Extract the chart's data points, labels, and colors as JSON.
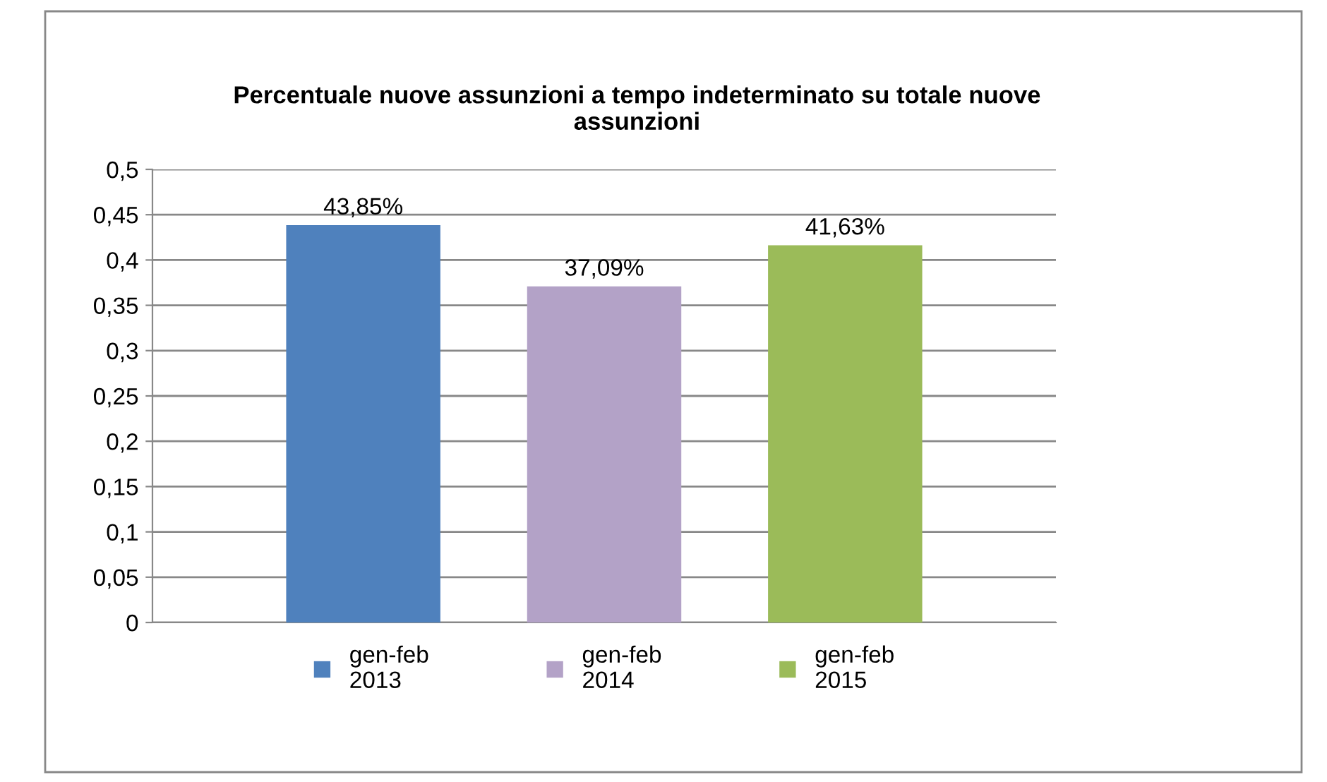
{
  "chart_data": {
    "type": "bar",
    "title": "Percentuale nuove assunzioni a tempo indeterminato su totale nuove\nassunzioni",
    "categories": [
      null
    ],
    "series": [
      {
        "name": "gen-feb\n2013",
        "color": "#4f81bd",
        "values": [
          0.4385
        ],
        "value_labels": [
          "43,85%"
        ]
      },
      {
        "name": "gen-feb\n2014",
        "color": "#b3a2c7",
        "values": [
          0.3709
        ],
        "value_labels": [
          "37,09%"
        ]
      },
      {
        "name": "gen-feb\n2015",
        "color": "#9bbb59",
        "values": [
          0.4163
        ],
        "value_labels": [
          "41,63%"
        ]
      }
    ],
    "ylim": [
      0,
      0.5
    ],
    "yticks": [
      0,
      {
        "value": 0.05,
        "label": "0,05"
      },
      {
        "value": 0.1,
        "label": "0,1"
      },
      {
        "value": 0.15,
        "label": "0,15"
      },
      {
        "value": 0.2,
        "label": "0,2"
      },
      {
        "value": 0.25,
        "label": "0,25"
      },
      {
        "value": 0.3,
        "label": "0,3"
      },
      {
        "value": 0.35,
        "label": "0,35"
      },
      {
        "value": 0.4,
        "label": "0,4"
      },
      {
        "value": 0.45,
        "label": "0,45"
      },
      {
        "value": 0.5,
        "label": "0,5"
      }
    ],
    "grid": "y",
    "legend": "bottom"
  }
}
